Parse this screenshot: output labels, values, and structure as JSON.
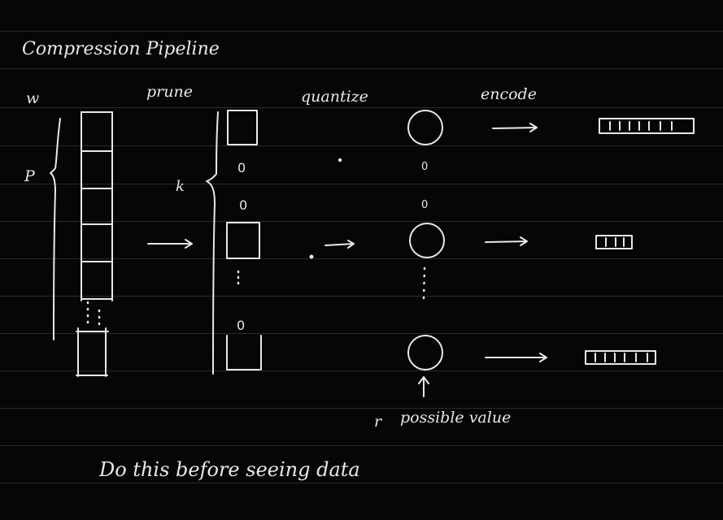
{
  "title": "Compression Pipeline",
  "labels": {
    "w": "w",
    "p": "P",
    "prune": "prune",
    "quantize": "quantize",
    "encode": "encode",
    "k": "k",
    "r": "r",
    "possible_value": "possible value"
  },
  "zero_entries": [
    "0",
    "0",
    "0",
    "0",
    "0"
  ],
  "footer_note": "Do this before seeing data",
  "colors": {
    "background": "#060606",
    "ink": "#e8e8e8",
    "rules": "#2b2b2b"
  }
}
